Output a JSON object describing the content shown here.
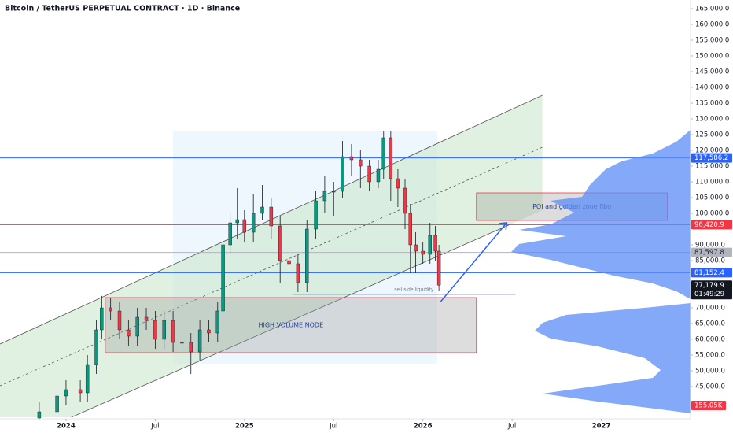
{
  "chart_data": {
    "type": "candlestick",
    "title": "Bitcoin / TetherUS PERPETUAL CONTRACT · 1D · Binance",
    "xlim": [
      2023.63,
      2027.5
    ],
    "ylim": [
      35250,
      167750
    ],
    "xticks": [
      2024,
      {
        "value": 2024.5,
        "label": "Jul"
      },
      2025,
      {
        "value": 2025.5,
        "label": "Jul"
      },
      2026,
      {
        "value": 2026.5,
        "label": "Jul"
      },
      2027
    ],
    "yticks": [
      {
        "value": 165000,
        "label": "165,000.0"
      },
      {
        "value": 160000,
        "label": "160,000.0"
      },
      {
        "value": 155000,
        "label": "155,000.0"
      },
      {
        "value": 150000,
        "label": "150,000.0"
      },
      {
        "value": 145000,
        "label": "145,000.0"
      },
      {
        "value": 140000,
        "label": "140,000.0"
      },
      {
        "value": 135000,
        "label": "135,000.0"
      },
      {
        "value": 130000,
        "label": "130,000.0"
      },
      {
        "value": 125000,
        "label": "125,000.0"
      },
      {
        "value": 120000,
        "label": "120,000.0"
      },
      {
        "value": 115000,
        "label": "115,000.0"
      },
      {
        "value": 110000,
        "label": "110,000.0"
      },
      {
        "value": 105000,
        "label": "105,000.0"
      },
      {
        "value": 100000,
        "label": "100,000.0"
      },
      {
        "value": 90000,
        "label": "90,000.0"
      },
      {
        "value": 85000,
        "label": "85,000.0"
      },
      {
        "value": 70000,
        "label": "70,000.0"
      },
      {
        "value": 65000,
        "label": "65,000.0"
      },
      {
        "value": 60000,
        "label": "60,000.0"
      },
      {
        "value": 55000,
        "label": "55,000.0"
      },
      {
        "value": 50000,
        "label": "50,000.0"
      },
      {
        "value": 45000,
        "label": "45,000.0"
      }
    ],
    "up_color": "#089981",
    "down_color": "#f23645",
    "x": [
      2023.85,
      2023.95,
      2024.0,
      2024.08,
      2024.12,
      2024.17,
      2024.2,
      2024.25,
      2024.3,
      2024.35,
      2024.4,
      2024.45,
      2024.5,
      2024.55,
      2024.6,
      2024.65,
      2024.7,
      2024.75,
      2024.8,
      2024.85,
      2024.88,
      2024.92,
      2024.96,
      2025.0,
      2025.05,
      2025.1,
      2025.15,
      2025.2,
      2025.25,
      2025.3,
      2025.35,
      2025.4,
      2025.45,
      2025.5,
      2025.55,
      2025.6,
      2025.65,
      2025.7,
      2025.75,
      2025.78,
      2025.82,
      2025.86,
      2025.9,
      2025.93,
      2025.96,
      2026.0,
      2026.04,
      2026.07,
      2026.09
    ],
    "open": [
      35000,
      37000,
      42000,
      44000,
      43000,
      52000,
      63000,
      70000,
      69000,
      63000,
      61000,
      67000,
      66000,
      60000,
      66000,
      59000,
      59000,
      56000,
      63000,
      62000,
      69000,
      90000,
      97000,
      98000,
      94000,
      100000,
      102000,
      96000,
      85000,
      84000,
      78000,
      95000,
      104000,
      107000,
      107000,
      118000,
      117000,
      115000,
      110000,
      114000,
      124000,
      111000,
      108000,
      100000,
      90000,
      88000,
      87000,
      93000,
      88000
    ],
    "high": [
      40000,
      45000,
      47000,
      47000,
      55000,
      66000,
      73800,
      73000,
      72000,
      66000,
      70000,
      70000,
      69000,
      69000,
      69000,
      62000,
      62000,
      66000,
      66000,
      72000,
      93000,
      100000,
      108000,
      101000,
      106000,
      109000,
      105000,
      99000,
      88000,
      87000,
      98000,
      107000,
      112000,
      110000,
      123000,
      122000,
      120000,
      117000,
      117000,
      126000,
      126000,
      114000,
      111000,
      103000,
      94000,
      91000,
      97000,
      96000,
      90000
    ],
    "low": [
      32000,
      34000,
      39000,
      40000,
      40000,
      49000,
      60000,
      66000,
      60000,
      58000,
      58000,
      63000,
      57000,
      57000,
      56000,
      54000,
      49000,
      53000,
      59000,
      59000,
      66000,
      87000,
      92000,
      91000,
      91000,
      98000,
      92000,
      78000,
      78000,
      75000,
      75000,
      92000,
      100000,
      99000,
      105000,
      112000,
      108000,
      107000,
      108000,
      111000,
      104000,
      102000,
      95000,
      81000,
      81000,
      84000,
      84000,
      85000,
      75500
    ],
    "close": [
      37000,
      42000,
      44000,
      43000,
      52000,
      63000,
      70000,
      69000,
      63000,
      61000,
      67000,
      66000,
      60000,
      66000,
      59000,
      59000,
      56000,
      63000,
      62000,
      69000,
      90000,
      97000,
      98000,
      94000,
      100000,
      102000,
      96000,
      85000,
      84000,
      78000,
      95000,
      104000,
      107000,
      107000,
      118000,
      117000,
      115000,
      110000,
      114000,
      124000,
      111000,
      108000,
      100000,
      90000,
      88000,
      87000,
      93000,
      88000,
      77179.9
    ],
    "price_lines": [
      {
        "value": 117586.2,
        "label": "117,586.2",
        "color": "#2962ff"
      },
      {
        "value": 96420.9,
        "label": "96,420.9",
        "color": "#f23645"
      },
      {
        "value": 87597.8,
        "label": "87,597.8",
        "color": "#b2b5be"
      },
      {
        "value": 81152.4,
        "label": "81,152.4",
        "color": "#2962ff"
      }
    ],
    "last_price": {
      "value": 77179.9,
      "label": "77,179.9"
    },
    "countdown": "01:49:29",
    "volume_badge": {
      "value": 155050,
      "label": "155.05K"
    },
    "zones": [
      {
        "text": "POI and golden zone fibo",
        "x_range": [
          2026.3,
          2027.37
        ],
        "price_range": [
          97750,
          106500
        ],
        "color": "#f23645"
      },
      {
        "text": "HIGH VOLUME NODE",
        "x_range": [
          2024.22,
          2026.3
        ],
        "price_range": [
          55750,
          73250
        ],
        "color": "#f23645"
      }
    ],
    "range_box": {
      "x_range": [
        2024.6,
        2026.08
      ],
      "price_range": [
        52250,
        126000
      ]
    },
    "channel": {
      "upper": [
        [
          2023.63,
          58500
        ],
        [
          2026.67,
          137500
        ]
      ],
      "middle": [
        [
          2023.63,
          45250
        ],
        [
          2026.67,
          121000
        ]
      ],
      "lower": [
        [
          2024.03,
          35250
        ],
        [
          2026.49,
          96500
        ]
      ]
    },
    "liquidity": {
      "text": "sell side liquidity",
      "price": 74250,
      "x_range": [
        2025.27,
        2026.52
      ]
    },
    "arrow": [
      [
        2026.1,
        72000
      ],
      [
        2026.47,
        97000
      ]
    ]
  }
}
